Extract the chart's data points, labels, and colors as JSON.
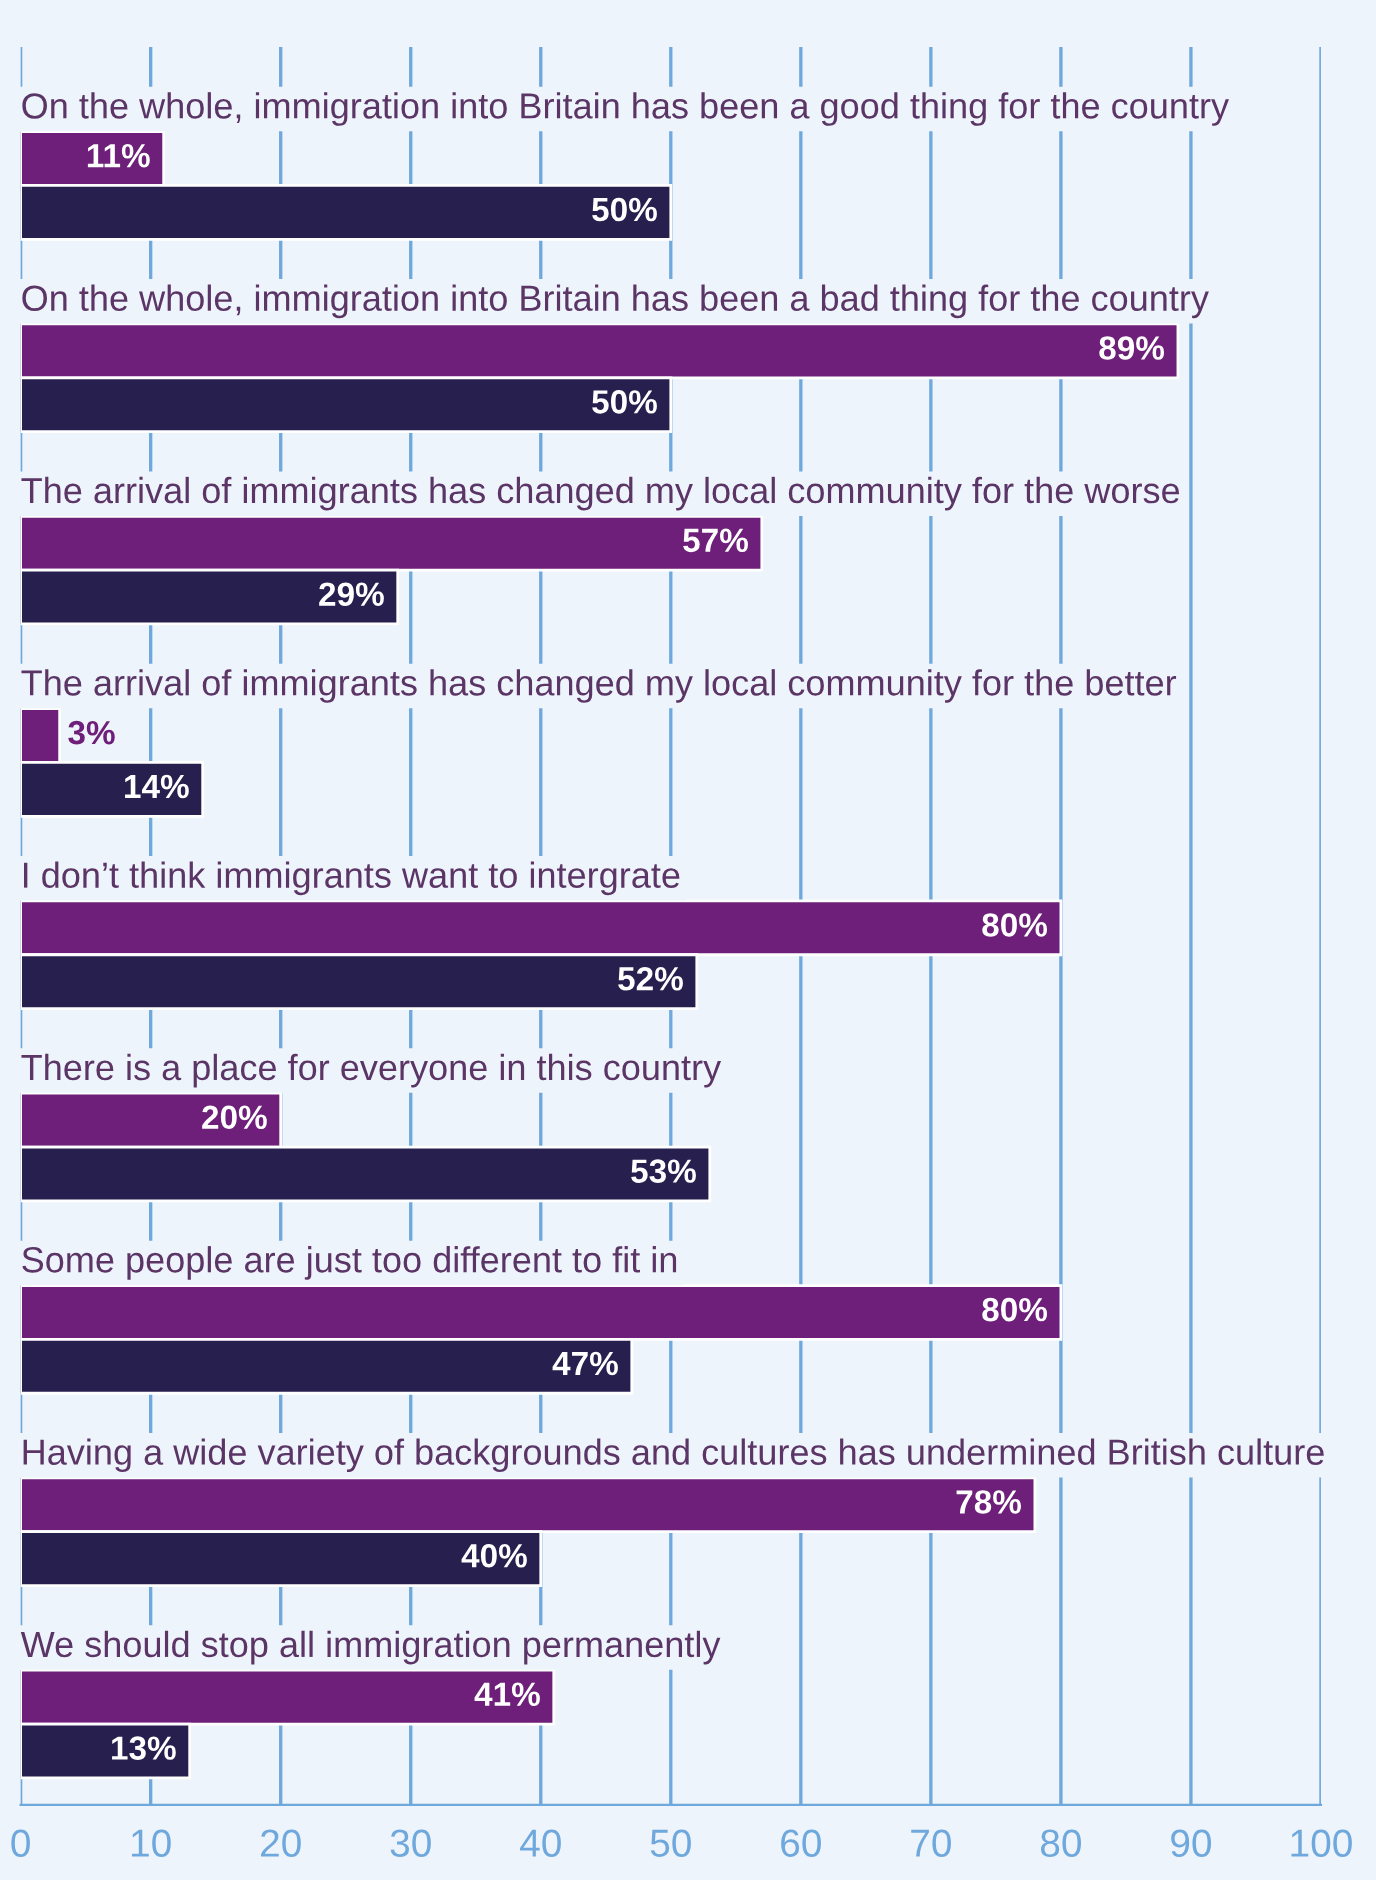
{
  "chart_data": {
    "type": "bar",
    "orientation": "horizontal",
    "categories": [
      "On the whole, immigration into Britain has been a good thing for the country",
      "On the whole, immigration into Britain has been a bad thing for the country",
      "The arrival of immigrants has changed my local community for the worse",
      "The arrival of immigrants has changed my local community for the better",
      "I don’t think immigrants want to intergrate",
      "There is a place for everyone in this country",
      "Some people are just too different to fit in",
      "Having a wide variety of backgrounds and cultures has undermined British culture",
      "We should stop all immigration permanently"
    ],
    "series": [
      {
        "color": "#6e1f7a",
        "values": [
          11,
          89,
          57,
          3,
          80,
          20,
          80,
          78,
          41
        ],
        "value_labels": [
          "11%",
          "89%",
          "57%",
          "3%",
          "80%",
          "20%",
          "80%",
          "78%",
          "41%"
        ]
      },
      {
        "color": "#27204f",
        "values": [
          50,
          50,
          29,
          14,
          52,
          53,
          47,
          40,
          13
        ],
        "value_labels": [
          "50%",
          "50%",
          "29%",
          "14%",
          "52%",
          "53%",
          "47%",
          "40%",
          "13%"
        ]
      }
    ],
    "xlim": [
      0,
      100
    ],
    "xticks": [
      0,
      10,
      20,
      30,
      40,
      50,
      60,
      70,
      80,
      90,
      100
    ],
    "grid": "x"
  }
}
